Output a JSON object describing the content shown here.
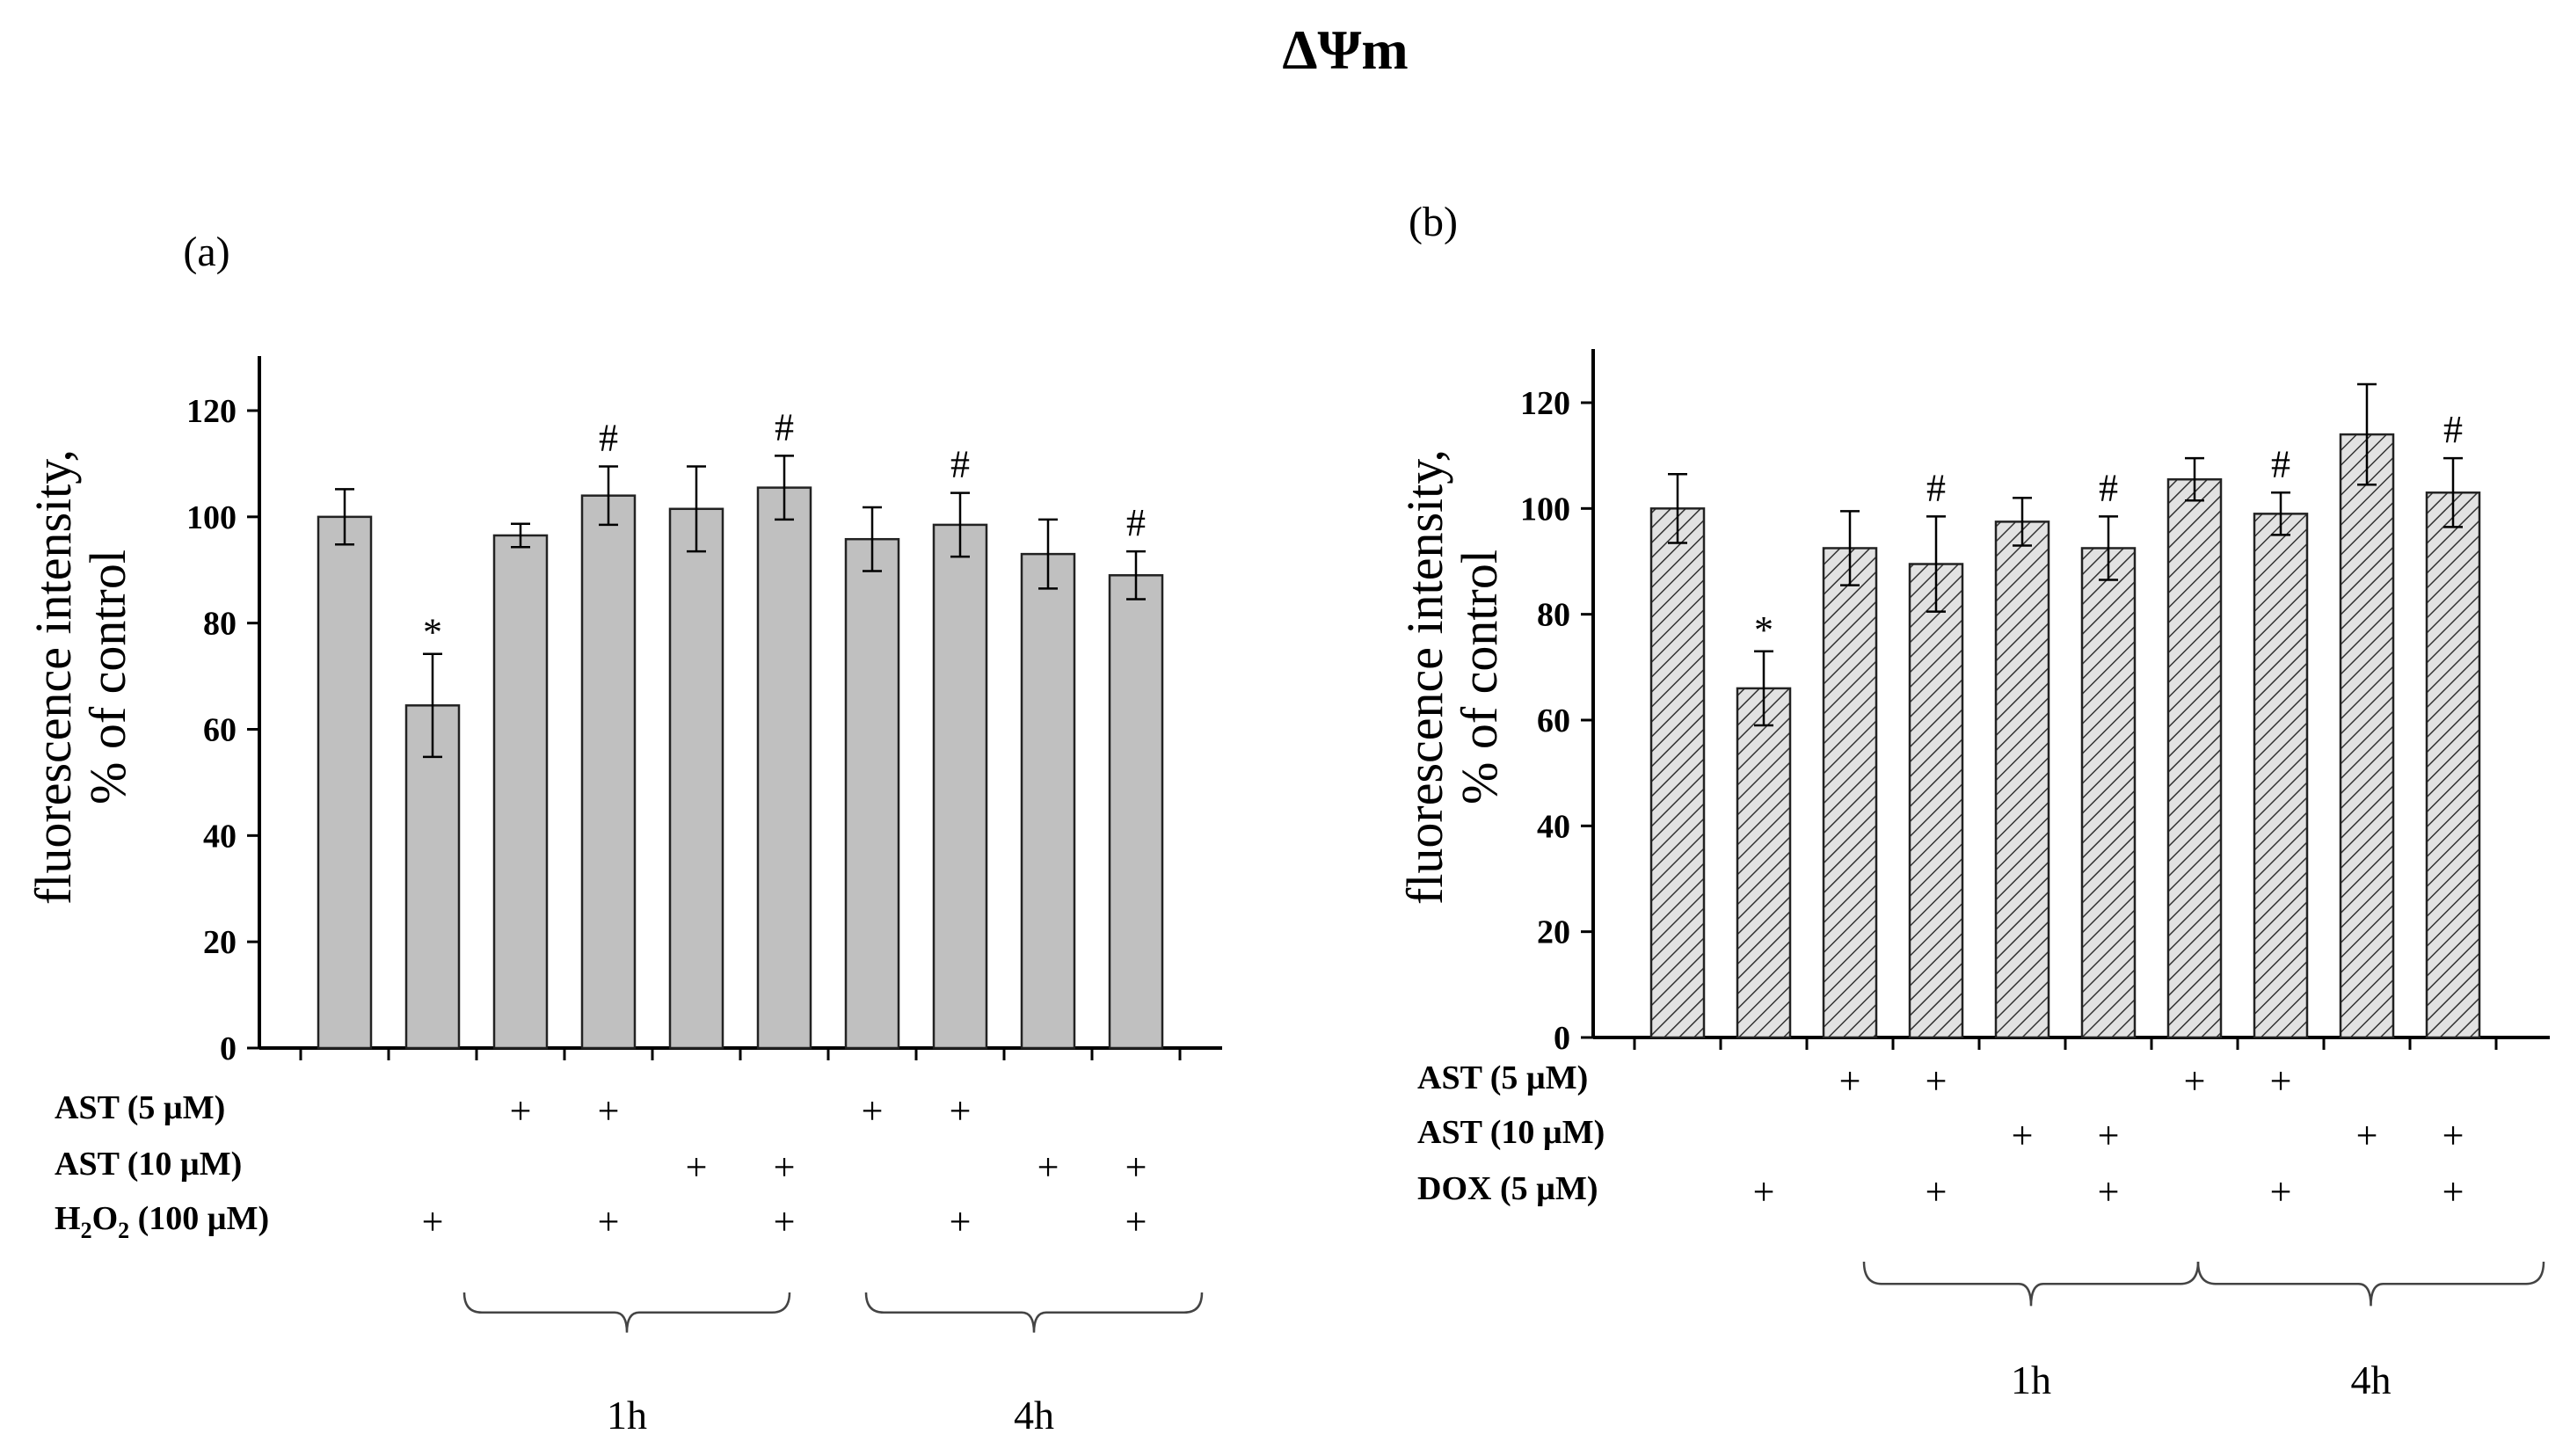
{
  "title": "ΔΨm",
  "chart_data": [
    {
      "type": "bar",
      "panel_label": "(a)",
      "ylabel_line1": "fluorescence intensity,",
      "ylabel_line2": "% of control",
      "ylim": [
        0,
        130
      ],
      "yticks": [
        0,
        20,
        40,
        60,
        80,
        100,
        120
      ],
      "values": [
        100,
        64.5,
        96.5,
        104,
        101.5,
        105.5,
        95.8,
        98.5,
        93,
        89
      ],
      "errors": [
        5.2,
        9.7,
        2.2,
        5.5,
        8.0,
        6.0,
        6.0,
        6.0,
        6.5,
        4.5
      ],
      "significance": [
        "",
        "*",
        "",
        "#",
        "",
        "#",
        "",
        "#",
        "",
        "#"
      ],
      "fill": "#c0c0c0",
      "pattern": "solid",
      "conditions": [
        {
          "label": "AST (5 µM)",
          "marks": [
            "",
            "",
            "+",
            "+",
            "",
            "",
            "+",
            "+",
            "",
            ""
          ]
        },
        {
          "label": "AST (10 µM)",
          "marks": [
            "",
            "",
            "",
            "",
            "+",
            "+",
            "",
            "",
            "+",
            "+"
          ]
        },
        {
          "label_main": "H",
          "label_sub": "2",
          "label_mid": "O",
          "label_sub2": "2",
          "label_rest": " (100 µM)",
          "marks": [
            "",
            "+",
            "",
            "+",
            "",
            "+",
            "",
            "+",
            "",
            "+"
          ]
        }
      ],
      "time_groups": [
        {
          "label": "1h",
          "from": 2,
          "to": 5
        },
        {
          "label": "4h",
          "from": 6,
          "to": 9
        }
      ]
    },
    {
      "type": "bar",
      "panel_label": "(b)",
      "ylabel_line1": "fluorescence intensity,",
      "ylabel_line2": "% of control",
      "ylim": [
        0,
        130
      ],
      "yticks": [
        0,
        20,
        40,
        60,
        80,
        100,
        120
      ],
      "values": [
        100,
        66,
        92.5,
        89.5,
        97.5,
        92.5,
        105.5,
        99,
        114,
        103
      ],
      "errors": [
        6.5,
        7.0,
        7.0,
        9.0,
        4.5,
        6.0,
        4.0,
        4.0,
        9.5,
        6.5
      ],
      "significance": [
        "",
        "*",
        "",
        "#",
        "",
        "#",
        "",
        "#",
        "",
        "#"
      ],
      "fill": "#d4d4d4",
      "pattern": "hatched",
      "conditions": [
        {
          "label": "AST (5 µM)",
          "marks": [
            "",
            "",
            "+",
            "+",
            "",
            "",
            "+",
            "+",
            "",
            ""
          ]
        },
        {
          "label": "AST (10 µM)",
          "marks": [
            "",
            "",
            "",
            "",
            "+",
            "+",
            "",
            "",
            "+",
            "+"
          ]
        },
        {
          "label": "DOX (5 µM)",
          "marks": [
            "",
            "+",
            "",
            "+",
            "",
            "+",
            "",
            "+",
            "",
            "+"
          ]
        }
      ],
      "time_groups": [
        {
          "label": "1h",
          "from": 2,
          "to": 5
        },
        {
          "label": "4h",
          "from": 6,
          "to": 9
        }
      ]
    }
  ]
}
